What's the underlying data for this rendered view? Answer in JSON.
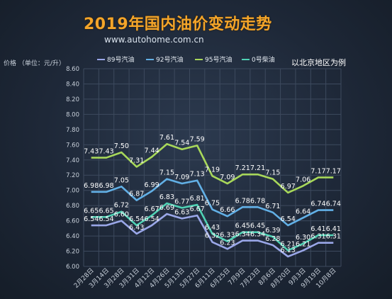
{
  "header": {
    "title": "2019年国内油价变动走势",
    "subtitle": "www.autohome.com.cn",
    "note": "以北京地区为例"
  },
  "colors": {
    "series_89": "#9aa7e8",
    "series_92": "#62b0e6",
    "series_95": "#a8d85a",
    "series_0": "#4fd1b4",
    "label": "#ffffff"
  },
  "chart_data": {
    "type": "line",
    "title": "2019年国内油价变动走势",
    "ylabel": "价格 （单位：元/升）",
    "xlabel": "",
    "ylim": [
      6.0,
      8.6
    ],
    "yticks": [
      6.0,
      6.2,
      6.4,
      6.6,
      6.8,
      7.0,
      7.2,
      7.4,
      7.6,
      7.8,
      8.0,
      8.2,
      8.4,
      8.6
    ],
    "ytick_labels": [
      "6.00",
      "6.20",
      "6.40",
      "6.60",
      "6.80",
      "7.00",
      "7.20",
      "7.40",
      "7.60",
      "7.80",
      "8.00",
      "8.20",
      "8.40",
      "8.60"
    ],
    "grid": true,
    "legend_position": "top",
    "categories": [
      "2月28日",
      "3月14日",
      "3月28日",
      "3月31日",
      "4月12日",
      "4月26日",
      "5月13日",
      "5月27日",
      "6月11日",
      "6月25日",
      "7月9日",
      "7月23日",
      "8月6日",
      "8月20日",
      "9月3日",
      "9月19日",
      "10月8日"
    ],
    "series": [
      {
        "name": "89号汽油",
        "color": "#9aa7e8",
        "values": [
          6.54,
          6.54,
          6.6,
          6.43,
          6.54,
          6.69,
          6.63,
          6.67,
          6.32,
          6.23,
          6.34,
          6.34,
          6.28,
          6.13,
          6.21,
          6.31,
          6.31
        ],
        "labels": [
          "6.54",
          "6.54",
          "6.60",
          "6.43",
          "6.54",
          "6.69",
          "6.63",
          "6.67",
          "6.32",
          "6.23",
          "6.34",
          "6.34",
          "6.28",
          "6.13",
          "6.21",
          "6.31",
          "6.31"
        ]
      },
      {
        "name": "92号汽油",
        "color": "#62b0e6",
        "values": [
          6.98,
          6.98,
          7.05,
          6.87,
          6.99,
          7.15,
          7.09,
          7.13,
          6.75,
          6.66,
          6.78,
          6.78,
          6.71,
          6.54,
          6.64,
          6.74,
          6.74
        ],
        "labels": [
          "6.98",
          "6.98",
          "7.05",
          "6.87",
          "6.99",
          "7.15",
          "7.09",
          "7.13",
          "6.75",
          "6.66",
          "6.78",
          "6.78",
          "6.71",
          "6.54",
          "6.64",
          "6.74",
          "6.74"
        ]
      },
      {
        "name": "95号汽油",
        "color": "#a8d85a",
        "values": [
          7.43,
          7.43,
          7.5,
          7.31,
          7.44,
          7.61,
          7.54,
          7.59,
          7.19,
          7.09,
          7.21,
          7.21,
          7.15,
          6.97,
          7.06,
          7.17,
          7.17
        ],
        "labels": [
          "7.43",
          "7.43",
          "7.50",
          "7.31",
          "7.44",
          "7.61",
          "7.54",
          "7.59",
          "7.19",
          "7.09",
          "7.21",
          "7.21",
          "7.15",
          "6.97",
          "7.06",
          "7.17",
          "7.17"
        ]
      },
      {
        "name": "0号柴油",
        "color": "#4fd1b4",
        "values": [
          6.65,
          6.65,
          6.72,
          6.54,
          6.67,
          6.83,
          6.77,
          6.81,
          6.43,
          6.33,
          6.45,
          6.45,
          6.39,
          6.21,
          6.3,
          6.41,
          6.41
        ],
        "labels": [
          "6.65",
          "6.65",
          "6.72",
          "6.54",
          "6.67",
          "6.83",
          "6.77",
          "6.81",
          "6.43",
          "6.33",
          "6.45",
          "6.45",
          "6.39",
          "6.21",
          "6.30",
          "6.41",
          "6.41"
        ]
      }
    ]
  }
}
